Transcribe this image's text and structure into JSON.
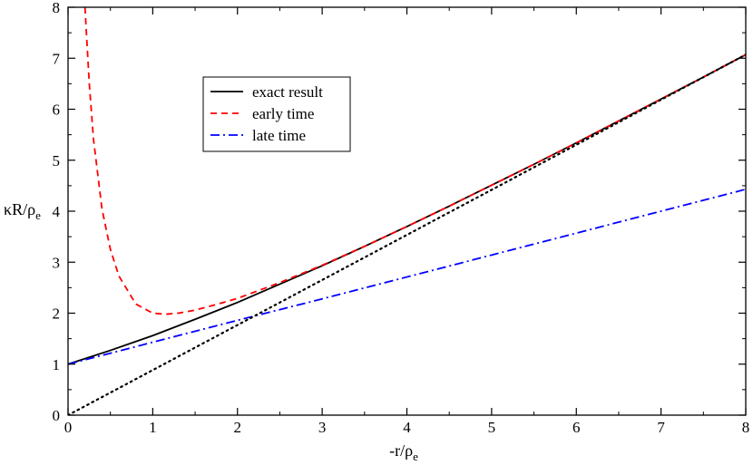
{
  "chart_data": {
    "type": "line",
    "xlabel": "-r/ρ",
    "xlabel_sub": "e",
    "ylabel": "κR/ρ",
    "ylabel_sub": "e",
    "xlim": [
      0,
      8
    ],
    "ylim": [
      0,
      8
    ],
    "xticks": [
      "0",
      "1",
      "2",
      "3",
      "4",
      "5",
      "6",
      "7",
      "8"
    ],
    "yticks": [
      "0",
      "1",
      "2",
      "3",
      "4",
      "5",
      "6",
      "7",
      "8"
    ],
    "grid": false,
    "legend_position": "top-left",
    "series": [
      {
        "name": "exact result",
        "color": "#000000",
        "style": "solid",
        "x": [
          0,
          0.5,
          1,
          1.5,
          2,
          2.5,
          3,
          3.5,
          4,
          4.5,
          5,
          5.5,
          6,
          6.5,
          7,
          7.5,
          8
        ],
        "y": [
          1.0,
          1.27,
          1.56,
          1.88,
          2.21,
          2.57,
          2.93,
          3.31,
          3.7,
          4.1,
          4.51,
          4.92,
          5.34,
          5.77,
          6.2,
          6.63,
          7.07
        ]
      },
      {
        "name": "early time",
        "color": "#ff0000",
        "style": "dashed",
        "x": [
          0.2,
          0.25,
          0.3,
          0.4,
          0.5,
          0.6,
          0.8,
          1.0,
          1.15,
          1.3,
          1.5,
          1.75,
          2.0,
          2.5,
          3,
          3.5,
          4,
          4.5,
          5,
          5.5,
          6,
          6.5,
          7,
          7.5,
          8
        ],
        "y": [
          8.0,
          6.52,
          5.42,
          4.05,
          3.25,
          2.73,
          2.18,
          2.0,
          1.98,
          2.0,
          2.06,
          2.17,
          2.29,
          2.6,
          2.94,
          3.31,
          3.7,
          4.1,
          4.51,
          4.92,
          5.34,
          5.77,
          6.2,
          6.63,
          7.07
        ]
      },
      {
        "name": "late time",
        "color": "#0000ff",
        "style": "dashdot",
        "x": [
          0,
          1,
          2,
          3,
          4,
          5,
          6,
          7,
          8
        ],
        "y": [
          1.0,
          1.43,
          1.86,
          2.28,
          2.71,
          3.14,
          3.57,
          4.0,
          4.43
        ]
      },
      {
        "name": "",
        "color": "#000000",
        "style": "dotted",
        "x": [
          0,
          8
        ],
        "y": [
          0,
          7.07
        ]
      }
    ]
  }
}
